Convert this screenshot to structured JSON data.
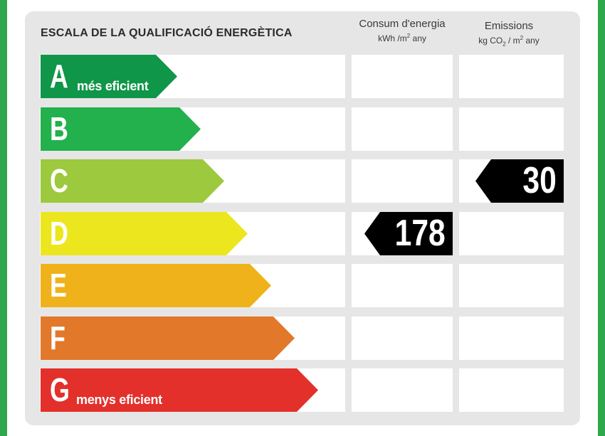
{
  "title": "ESCALA DE LA QUALIFICACIÓ ENERGÈTICA",
  "columns": {
    "consum": {
      "line1": "Consum d'energia",
      "unit_a": "kWh /m",
      "unit_sup": "2",
      "unit_b": " any"
    },
    "emissions": {
      "line1": "Emissions",
      "unit_a": "kg CO",
      "unit_sub": "2",
      "unit_b": " / m",
      "unit_sup": "2",
      "unit_c": " any"
    }
  },
  "ratings": [
    {
      "letter": "A",
      "label": "més eficient",
      "color": "#0f9648"
    },
    {
      "letter": "B",
      "label": "",
      "color": "#22b14c"
    },
    {
      "letter": "C",
      "label": "",
      "color": "#9cc93d"
    },
    {
      "letter": "D",
      "label": "",
      "color": "#ece61e"
    },
    {
      "letter": "E",
      "label": "",
      "color": "#f0b21a"
    },
    {
      "letter": "F",
      "label": "",
      "color": "#e2782a"
    },
    {
      "letter": "G",
      "label": "menys eficient",
      "color": "#e3302b"
    }
  ],
  "consumption": {
    "rating": "D",
    "value": "178"
  },
  "emissions": {
    "rating": "C",
    "value": "30"
  }
}
